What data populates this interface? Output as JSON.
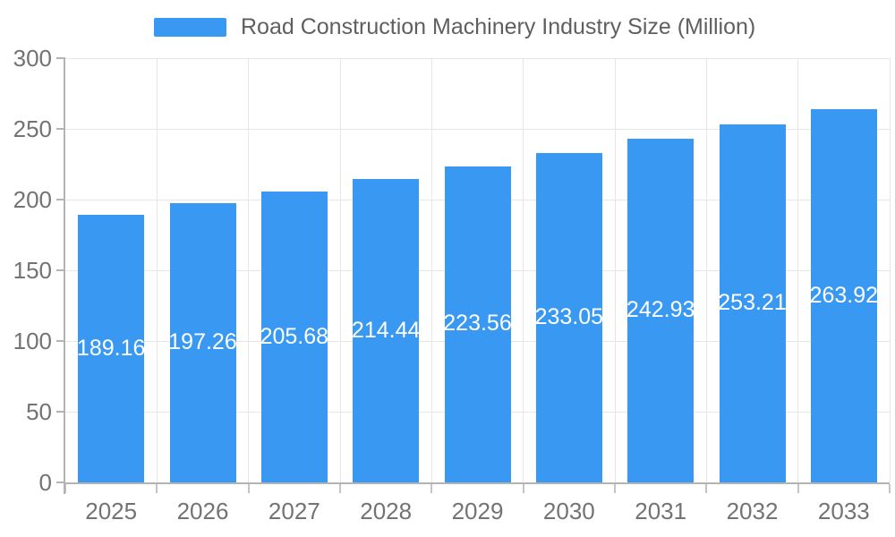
{
  "legend": {
    "label": "Road Construction Machinery Industry Size (Million)",
    "swatch_color": "#3999F2"
  },
  "chart_data": {
    "type": "bar",
    "title": "Road Construction Machinery Industry Size (Million)",
    "categories": [
      "2025",
      "2026",
      "2027",
      "2028",
      "2029",
      "2030",
      "2031",
      "2032",
      "2033"
    ],
    "values": [
      189.16,
      197.26,
      205.68,
      214.44,
      223.56,
      233.05,
      242.93,
      253.21,
      263.92
    ],
    "value_labels": [
      "189.16",
      "197.26",
      "205.68",
      "214.44",
      "223.56",
      "233.05",
      "242.93",
      "253.21",
      "263.92"
    ],
    "xlabel": "",
    "ylabel": "",
    "ylim": [
      0,
      300
    ],
    "yticks": [
      0,
      50,
      100,
      150,
      200,
      250,
      300
    ],
    "grid": true,
    "legend_position": "top",
    "value_label_position": "inside-center",
    "colors": {
      "bar": "#3999F2",
      "value_label": "#ffffff",
      "axis_text": "#737373",
      "legend_text": "#5f5f5f",
      "grid_line": "#e6e6e6",
      "axis_line": "#b3b3b3",
      "tick_mark": "#c4c4c4",
      "background": "#ffffff"
    }
  }
}
